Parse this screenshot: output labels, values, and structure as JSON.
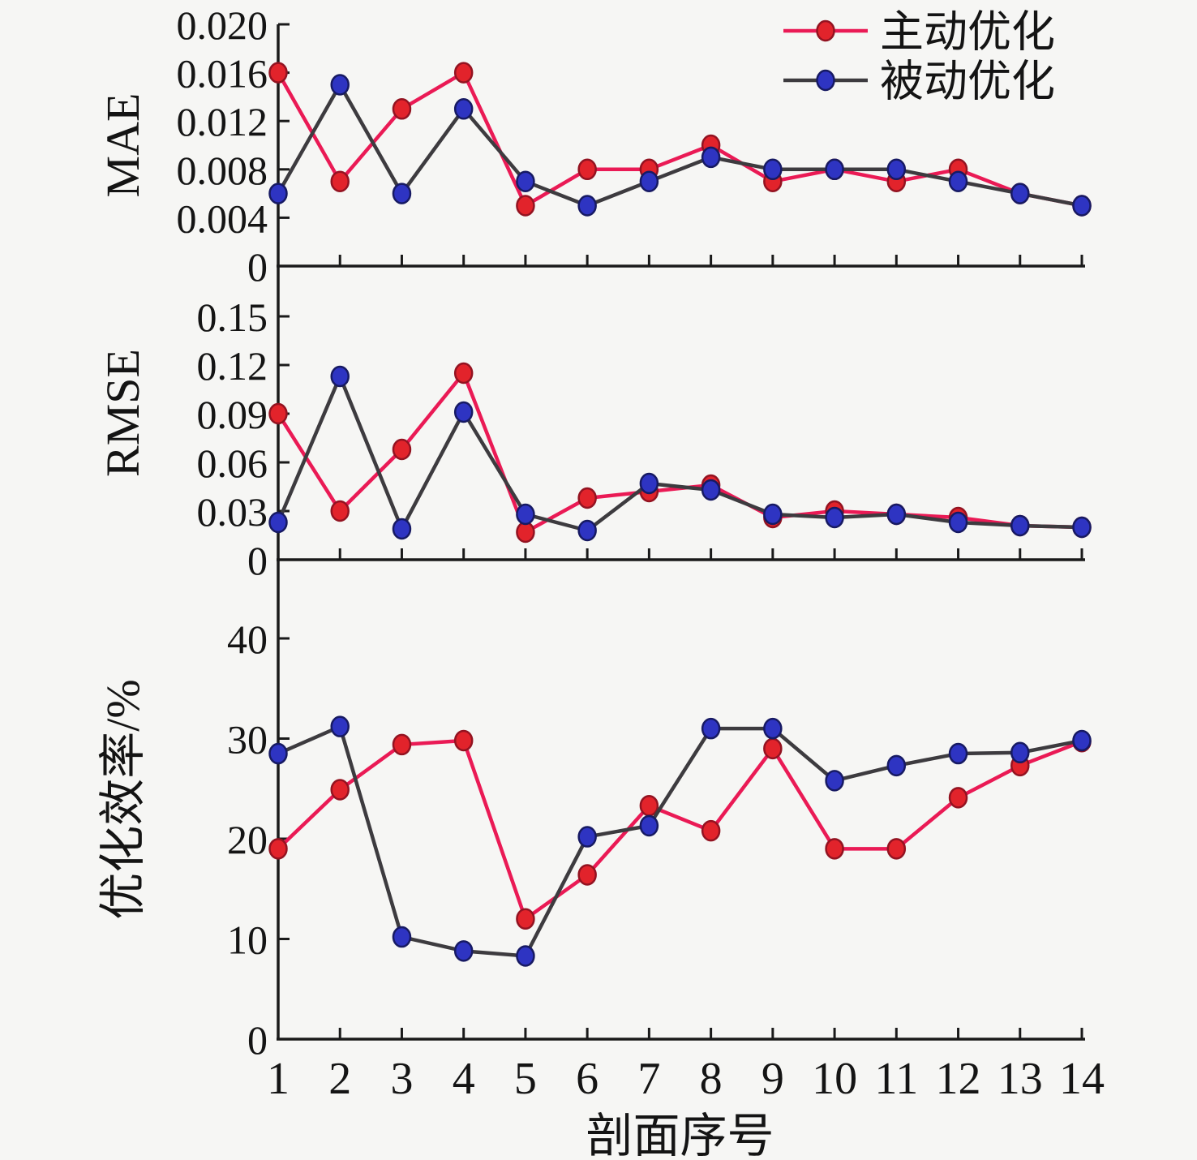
{
  "figure": {
    "background": "#f6f6f4",
    "axis_color": "#1a1a1a"
  },
  "chart_data": {
    "type": "line",
    "xlabel": "剖面序号",
    "x": [
      1,
      2,
      3,
      4,
      5,
      6,
      7,
      8,
      9,
      10,
      11,
      12,
      13,
      14
    ],
    "x_tick_labels": [
      "1",
      "2",
      "3",
      "4",
      "5",
      "6",
      "7",
      "8",
      "9",
      "10",
      "11",
      "12",
      "13",
      "14"
    ],
    "legend": {
      "position": "top-right",
      "items": [
        "主动优化",
        "被动优化"
      ]
    },
    "series_styles": [
      {
        "name": "主动优化",
        "line_color": "#ea1a55",
        "marker_color": "#e2232b",
        "marker_edge": "#931321"
      },
      {
        "name": "被动优化",
        "line_color": "#3d3b3f",
        "marker_color": "#2e34c2",
        "marker_edge": "#171a63"
      }
    ],
    "panels": [
      {
        "ylabel": "MAE",
        "ylim": [
          0,
          0.0205
        ],
        "ytick_labels": [
          "0",
          "0.004",
          "0.008",
          "0.012",
          "0.016",
          "0.020"
        ],
        "grid": false,
        "series": [
          {
            "name": "主动优化",
            "values": [
              0.016,
              0.007,
              0.013,
              0.016,
              0.005,
              0.008,
              0.008,
              0.01,
              0.007,
              0.008,
              0.007,
              0.008,
              0.006,
              0.005
            ]
          },
          {
            "name": "被动优化",
            "values": [
              0.006,
              0.015,
              0.006,
              0.013,
              0.007,
              0.005,
              0.007,
              0.009,
              0.008,
              0.008,
              0.008,
              0.007,
              0.006,
              0.005
            ]
          }
        ]
      },
      {
        "ylabel": "RMSE",
        "ylim": [
          0,
          0.181
        ],
        "ytick_labels": [
          "0",
          "0.03",
          "0.06",
          "0.09",
          "0.12",
          "0.15"
        ],
        "grid": false,
        "series": [
          {
            "name": "主动优化",
            "values": [
              0.09,
              0.03,
              0.068,
              0.115,
              0.017,
              0.038,
              0.042,
              0.046,
              0.026,
              0.03,
              0.028,
              0.026,
              0.021,
              0.02
            ]
          },
          {
            "name": "被动优化",
            "values": [
              0.023,
              0.113,
              0.019,
              0.091,
              0.028,
              0.018,
              0.047,
              0.043,
              0.028,
              0.026,
              0.028,
              0.023,
              0.021,
              0.02
            ]
          }
        ]
      },
      {
        "ylabel": "优化效率/%",
        "ylim": [
          0,
          47.8
        ],
        "ytick_labels": [
          "0",
          "10",
          "20",
          "30",
          "40"
        ],
        "grid": false,
        "series": [
          {
            "name": "主动优化",
            "values": [
              19.0,
              24.9,
              29.4,
              29.8,
              12.0,
              16.4,
              23.3,
              20.8,
              29.0,
              19.0,
              19.0,
              24.1,
              27.3,
              29.7
            ]
          },
          {
            "name": "被动优化",
            "values": [
              28.5,
              31.2,
              10.2,
              8.8,
              8.3,
              20.2,
              21.3,
              31.0,
              31.0,
              25.8,
              27.3,
              28.5,
              28.6,
              29.8
            ]
          }
        ]
      }
    ]
  }
}
